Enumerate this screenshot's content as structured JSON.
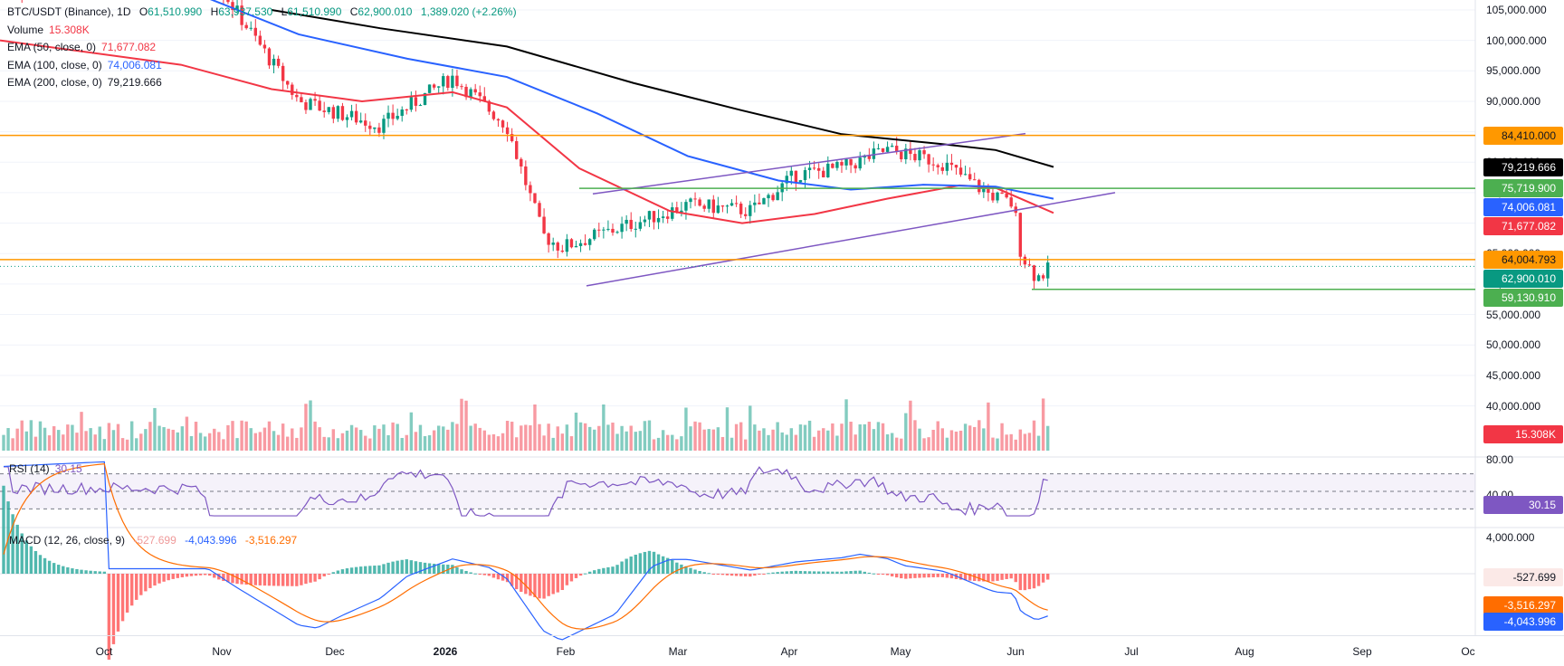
{
  "legend": {
    "symbol": "BTC/USDT (Binance), 1D",
    "ohlc": [
      {
        "label": "O",
        "value": "61,510.990"
      },
      {
        "label": "H",
        "value": "63,937.530"
      },
      {
        "label": "L",
        "value": "61,510.990"
      },
      {
        "label": "C",
        "value": "62,900.010"
      }
    ],
    "change": "1,389.020 (+2.26%)",
    "rows": [
      {
        "label": "Volume",
        "value": "15.308K",
        "color": "#f23645"
      },
      {
        "label": "EMA (50, close, 0)",
        "value": "71,677.082",
        "color": "#f23645"
      },
      {
        "label": "EMA (100, close, 0)",
        "value": "74,006.081",
        "color": "#2962ff"
      },
      {
        "label": "EMA (200, close, 0)",
        "value": "79,219.666",
        "color": "#131722"
      }
    ]
  },
  "price_axis": [
    "105,000.000",
    "100,000.000",
    "95,000.000",
    "90,000.000",
    "85,000.000",
    "80,000.000",
    "75,000.000",
    "70,000.000",
    "65,000.000",
    "60,000.000",
    "55,000.000",
    "50,000.000",
    "45,000.000",
    "40,000.000"
  ],
  "price_tags": [
    {
      "text": "84,410.000",
      "bg": "#ff9800",
      "fg": "#131722",
      "price": 84410
    },
    {
      "text": "79,219.666",
      "bg": "#000000",
      "fg": "#ffffff",
      "price": 79219.666
    },
    {
      "text": "75,719.900",
      "bg": "#4caf50",
      "fg": "#ffffff",
      "price": 75719.9
    },
    {
      "text": "74,006.081",
      "bg": "#2962ff",
      "fg": "#ffffff",
      "price": 74006.081
    },
    {
      "text": "71,677.082",
      "bg": "#f23645",
      "fg": "#ffffff",
      "price": 71677.082
    },
    {
      "text": "64,004.793",
      "bg": "#ff9800",
      "fg": "#131722",
      "price": 64004.793
    },
    {
      "text": "62,900.010",
      "bg": "#089981",
      "fg": "#ffffff",
      "price": 62900.01
    },
    {
      "text": "59,130.910",
      "bg": "#4caf50",
      "fg": "#ffffff",
      "price": 59130.91
    }
  ],
  "volume_tag": {
    "text": "15.308K",
    "bg": "#f23645",
    "fg": "#ffffff"
  },
  "rsi": {
    "label": "RSI (14)",
    "value": "30.15",
    "axis": [
      "80.00",
      "40.00"
    ],
    "tag": {
      "text": "30.15",
      "bg": "#7e57c2",
      "fg": "#ffffff"
    },
    "levels": [
      70,
      50,
      30
    ]
  },
  "macd": {
    "label": "MACD (12, 26, close, 9)",
    "values": [
      {
        "text": "-527.699",
        "color": "#ef9a9a"
      },
      {
        "text": "-4,043.996",
        "color": "#2962ff"
      },
      {
        "text": "-3,516.297",
        "color": "#ff6d00"
      }
    ],
    "axis": [
      "4,000.000"
    ],
    "tags": [
      {
        "text": "-527.699",
        "bg": "#fbe9e7",
        "fg": "#131722"
      },
      {
        "text": "-3,516.297",
        "bg": "#ff6d00",
        "fg": "#ffffff"
      },
      {
        "text": "-4,043.996",
        "bg": "#2962ff",
        "fg": "#ffffff"
      }
    ]
  },
  "time_axis": [
    "Oct",
    "Nov",
    "Dec",
    "2026",
    "Feb",
    "Mar",
    "Apr",
    "May",
    "Jun",
    "Jul",
    "Aug",
    "Sep",
    "Oc"
  ],
  "colors": {
    "up": "#089981",
    "down": "#f23645",
    "ema50": "#f23645",
    "ema100": "#2962ff",
    "ema200": "#000000",
    "channel": "#7e57c2",
    "hline_orange": "#ff9800",
    "hline_green": "#4caf50"
  },
  "chart_data": {
    "type": "candlestick",
    "timeframe": "1D",
    "series": [
      {
        "name": "EMA (50, close, 0)",
        "last": 71677.082
      },
      {
        "name": "EMA (100, close, 0)",
        "last": 74006.081
      },
      {
        "name": "EMA (200, close, 0)",
        "last": 79219.666
      }
    ],
    "monthly_closes_approx": [
      {
        "x": "Oct",
        "y": 114000
      },
      {
        "x": "Nov",
        "y": 108000
      },
      {
        "x": "Dec",
        "y": 88000
      },
      {
        "x": "2026",
        "y": 88500
      },
      {
        "x": "Feb",
        "y": 76000
      },
      {
        "x": "Mar",
        "y": 68000
      },
      {
        "x": "Apr",
        "y": 69000
      },
      {
        "x": "May",
        "y": 77000
      },
      {
        "x": "Jun",
        "y": 62900
      }
    ],
    "horizontal_levels": [
      84410,
      75719.9,
      64004.793,
      59130.91
    ],
    "ylim": [
      40000,
      106000
    ],
    "rsi_last": 30.15,
    "macd_last": {
      "hist": -527.699,
      "macd": -4043.996,
      "signal": -3516.297
    }
  }
}
